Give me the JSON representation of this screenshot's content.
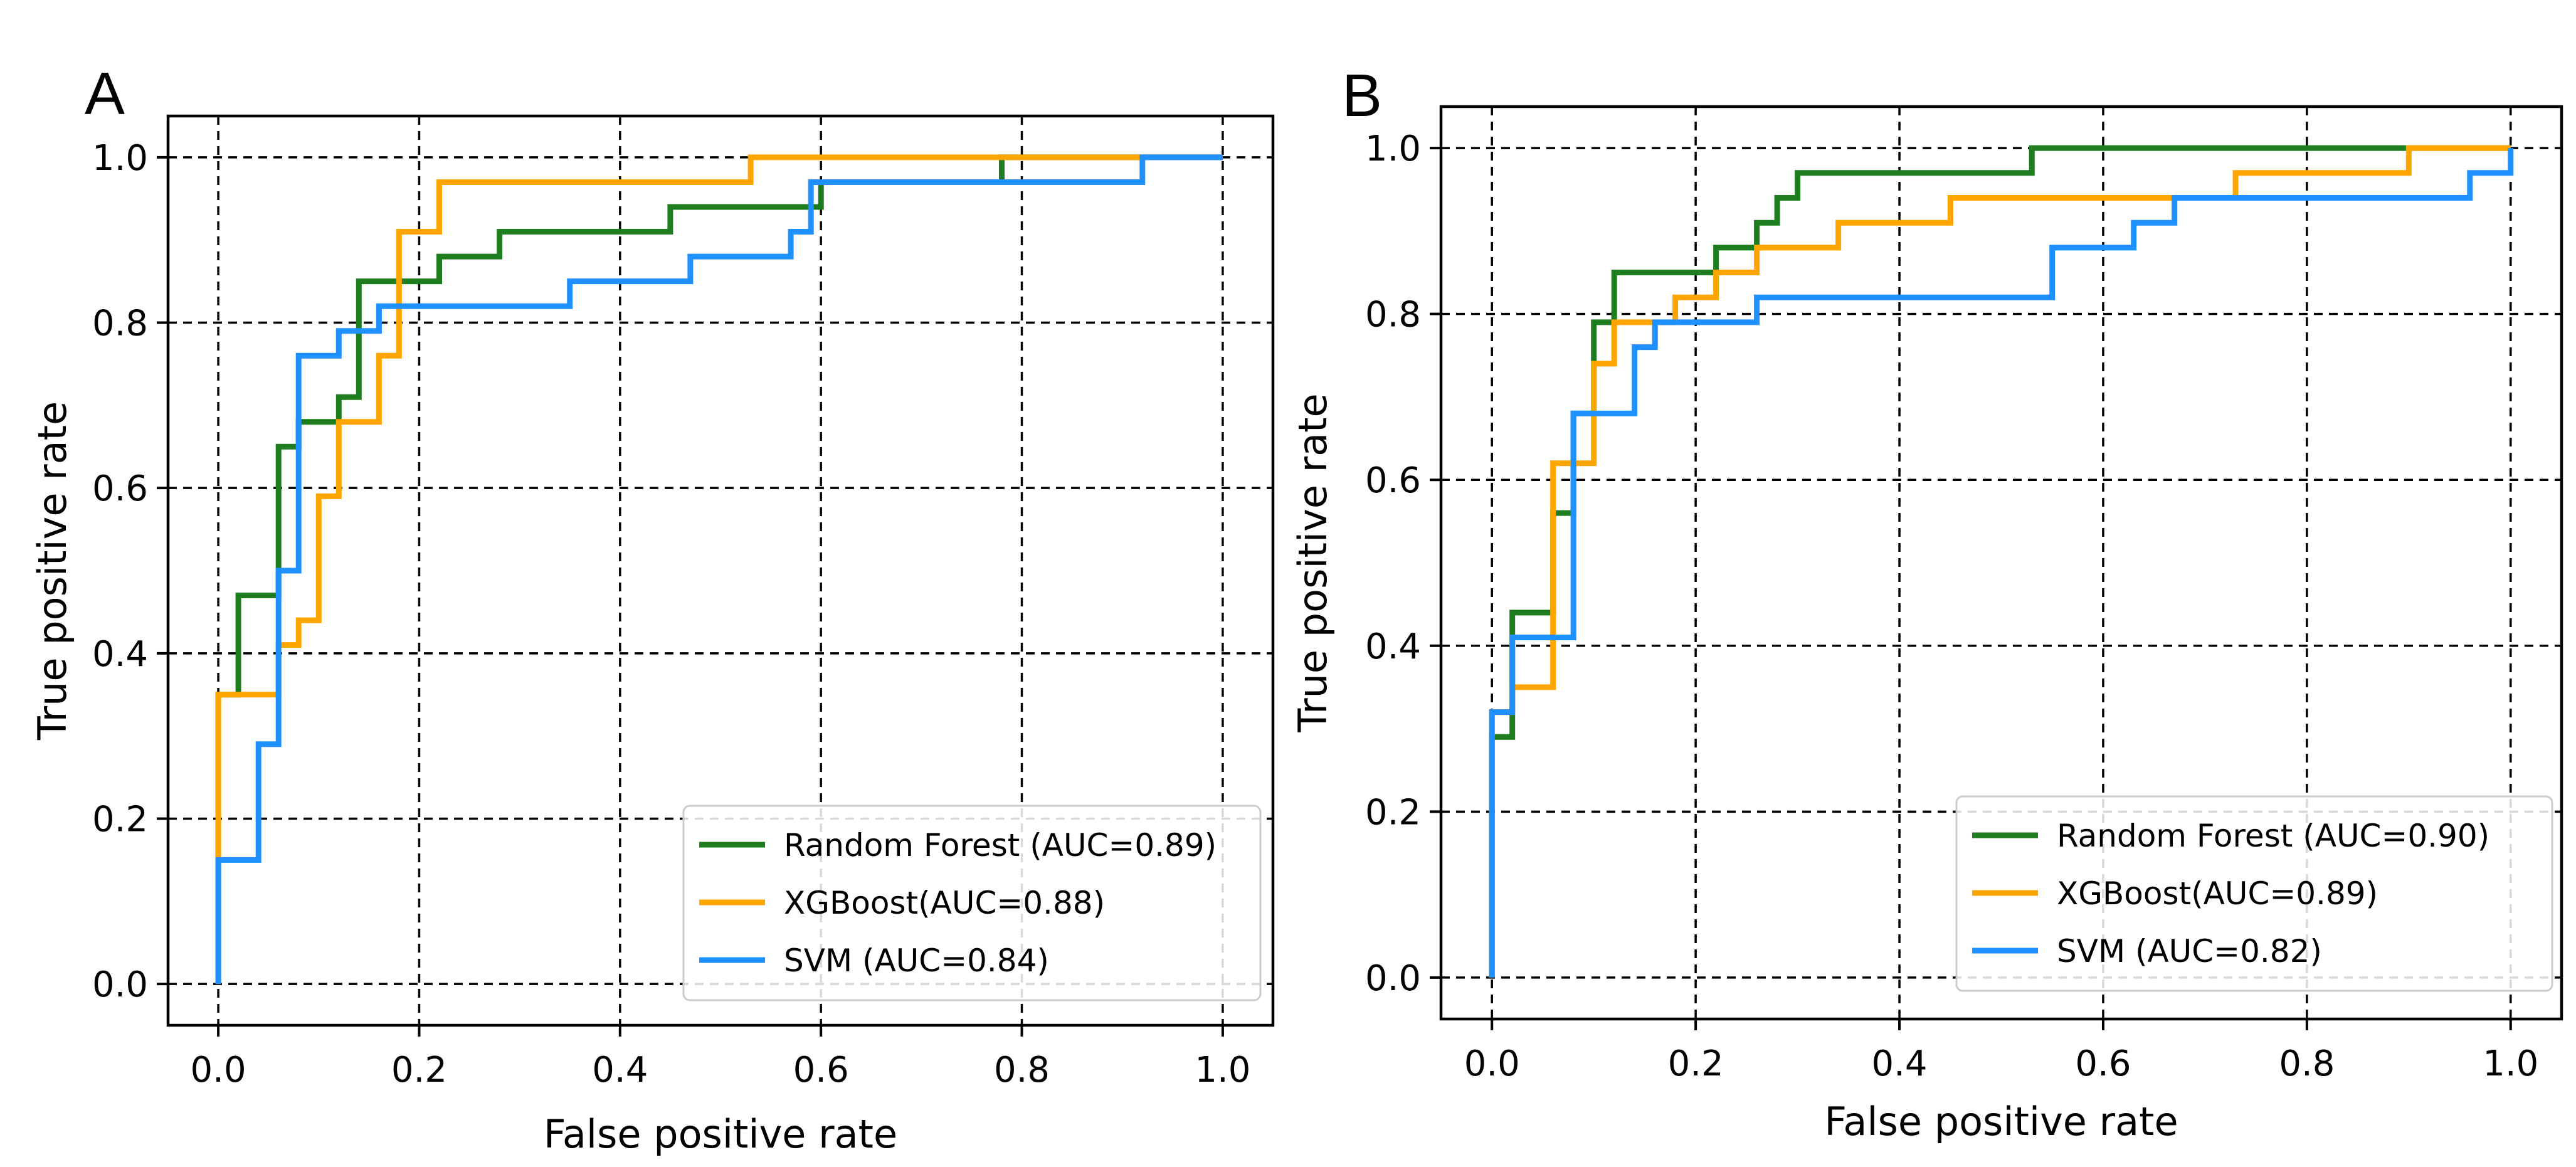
{
  "chart_data": [
    {
      "type": "line",
      "panel_label": "A",
      "xlabel": "False positive rate",
      "ylabel": "True positive rate",
      "xlim": [
        -0.05,
        1.05
      ],
      "ylim": [
        -0.05,
        1.05
      ],
      "xticks": [
        "0.0",
        "0.2",
        "0.4",
        "0.6",
        "0.8",
        "1.0"
      ],
      "yticks": [
        "0.0",
        "0.2",
        "0.4",
        "0.6",
        "0.8",
        "1.0"
      ],
      "grid": true,
      "legend_position": "lower-right",
      "series": [
        {
          "name": "Random Forest (AUC=0.89)",
          "color": "#1e7d1e",
          "x": [
            0,
            0,
            0.02,
            0.02,
            0.06,
            0.06,
            0.08,
            0.08,
            0.12,
            0.12,
            0.14,
            0.14,
            0.22,
            0.22,
            0.24,
            0.24,
            0.28,
            0.28,
            0.45,
            0.45,
            0.6,
            0.6,
            0.62,
            0.62,
            0.78,
            0.78,
            1.0
          ],
          "y": [
            0,
            0.35,
            0.35,
            0.47,
            0.47,
            0.65,
            0.65,
            0.68,
            0.68,
            0.71,
            0.71,
            0.85,
            0.85,
            0.88,
            0.88,
            0.88,
            0.88,
            0.91,
            0.91,
            0.94,
            0.94,
            0.97,
            0.97,
            0.97,
            0.97,
            1.0,
            1.0
          ]
        },
        {
          "name": "XGBoost(AUC=0.88)",
          "color": "#ffa500",
          "x": [
            0,
            0,
            0.0,
            0.0,
            0.06,
            0.06,
            0.08,
            0.08,
            0.1,
            0.1,
            0.12,
            0.12,
            0.14,
            0.14,
            0.16,
            0.16,
            0.18,
            0.18,
            0.22,
            0.22,
            0.53,
            0.53,
            1.0
          ],
          "y": [
            0,
            0.15,
            0.15,
            0.35,
            0.35,
            0.41,
            0.41,
            0.44,
            0.44,
            0.59,
            0.59,
            0.68,
            0.68,
            0.68,
            0.68,
            0.76,
            0.76,
            0.91,
            0.91,
            0.97,
            0.97,
            1.0,
            1.0
          ]
        },
        {
          "name": "SVM (AUC=0.84)",
          "color": "#1e90ff",
          "x": [
            0,
            0,
            0.04,
            0.04,
            0.06,
            0.06,
            0.08,
            0.08,
            0.12,
            0.12,
            0.16,
            0.16,
            0.35,
            0.35,
            0.47,
            0.47,
            0.57,
            0.57,
            0.59,
            0.59,
            0.92,
            0.92,
            1.0
          ],
          "y": [
            0,
            0.15,
            0.15,
            0.29,
            0.29,
            0.5,
            0.5,
            0.76,
            0.76,
            0.79,
            0.79,
            0.82,
            0.82,
            0.85,
            0.85,
            0.88,
            0.88,
            0.91,
            0.91,
            0.97,
            0.97,
            1.0,
            1.0
          ]
        }
      ]
    },
    {
      "type": "line",
      "panel_label": "B",
      "xlabel": "False positive rate",
      "ylabel": "True positive rate",
      "xlim": [
        -0.05,
        1.05
      ],
      "ylim": [
        -0.05,
        1.05
      ],
      "xticks": [
        "0.0",
        "0.2",
        "0.4",
        "0.6",
        "0.8",
        "1.0"
      ],
      "yticks": [
        "0.0",
        "0.2",
        "0.4",
        "0.6",
        "0.8",
        "1.0"
      ],
      "grid": true,
      "legend_position": "lower-right",
      "series": [
        {
          "name": "Random Forest (AUC=0.90)",
          "color": "#1e7d1e",
          "x": [
            0,
            0,
            0.02,
            0.02,
            0.06,
            0.06,
            0.08,
            0.08,
            0.1,
            0.1,
            0.12,
            0.12,
            0.22,
            0.22,
            0.26,
            0.26,
            0.28,
            0.28,
            0.3,
            0.3,
            0.53,
            0.53,
            1.0
          ],
          "y": [
            0,
            0.29,
            0.29,
            0.44,
            0.44,
            0.56,
            0.56,
            0.68,
            0.68,
            0.79,
            0.79,
            0.85,
            0.85,
            0.88,
            0.88,
            0.91,
            0.91,
            0.94,
            0.94,
            0.97,
            0.97,
            1.0,
            1.0
          ]
        },
        {
          "name": "XGBoost(AUC=0.89)",
          "color": "#ffa500",
          "x": [
            0,
            0,
            0.02,
            0.02,
            0.06,
            0.06,
            0.08,
            0.08,
            0.1,
            0.1,
            0.12,
            0.12,
            0.18,
            0.18,
            0.22,
            0.22,
            0.26,
            0.26,
            0.34,
            0.34,
            0.41,
            0.41,
            0.45,
            0.45,
            0.73,
            0.73,
            0.9,
            0.9,
            1.0
          ],
          "y": [
            0,
            0.32,
            0.32,
            0.35,
            0.35,
            0.62,
            0.62,
            0.62,
            0.62,
            0.74,
            0.74,
            0.79,
            0.79,
            0.82,
            0.82,
            0.85,
            0.85,
            0.88,
            0.88,
            0.91,
            0.91,
            0.91,
            0.91,
            0.94,
            0.94,
            0.97,
            0.97,
            1.0,
            1.0
          ]
        },
        {
          "name": "SVM (AUC=0.82)",
          "color": "#1e90ff",
          "x": [
            0,
            0,
            0.02,
            0.02,
            0.08,
            0.08,
            0.14,
            0.14,
            0.16,
            0.16,
            0.26,
            0.26,
            0.55,
            0.55,
            0.63,
            0.63,
            0.67,
            0.67,
            0.96,
            0.96,
            1.0,
            1.0
          ],
          "y": [
            0,
            0.32,
            0.32,
            0.41,
            0.41,
            0.68,
            0.68,
            0.76,
            0.76,
            0.79,
            0.79,
            0.82,
            0.82,
            0.88,
            0.88,
            0.91,
            0.91,
            0.94,
            0.94,
            0.97,
            0.97,
            1.0
          ]
        }
      ]
    }
  ]
}
